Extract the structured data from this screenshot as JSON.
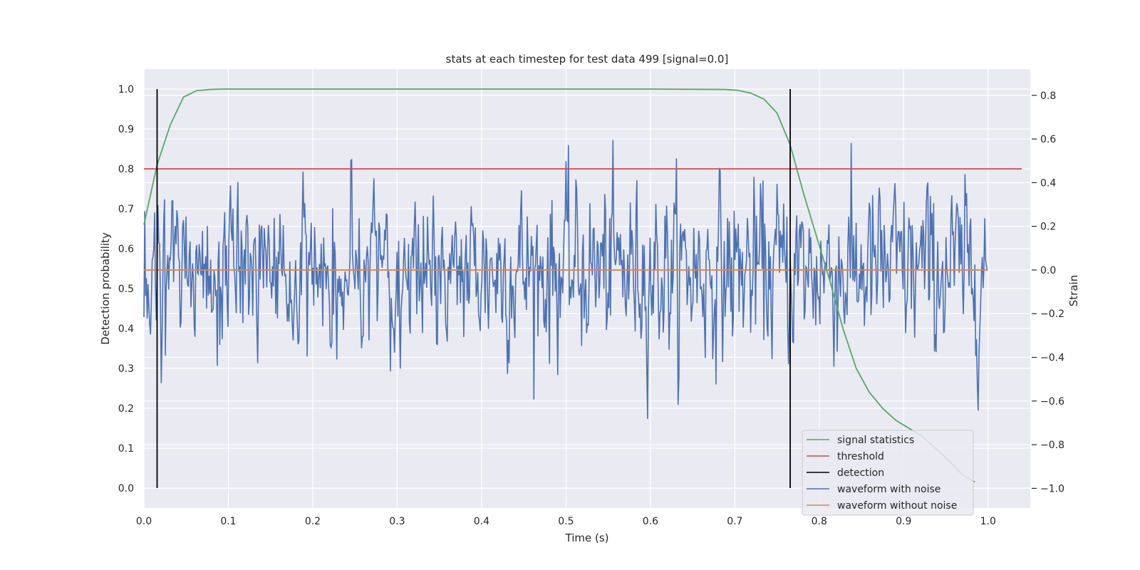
{
  "chart_data": {
    "type": "line",
    "title": "stats at each timestep for test data 499 [signal=0.0]",
    "xlabel": "Time (s)",
    "ylabel_left": "Detection probability",
    "ylabel_right": "Strain",
    "xlim": [
      0.0,
      1.05
    ],
    "ylim_left": [
      -0.05,
      1.05
    ],
    "ylim_right": [
      -1.09,
      0.92
    ],
    "x_ticks": [
      0.0,
      0.1,
      0.2,
      0.3,
      0.4,
      0.5,
      0.6,
      0.7,
      0.8,
      0.9,
      1.0
    ],
    "x_tick_labels": [
      "0.0",
      "0.1",
      "0.2",
      "0.3",
      "0.4",
      "0.5",
      "0.6",
      "0.7",
      "0.8",
      "0.9",
      "1.0"
    ],
    "y_left_ticks": [
      0.0,
      0.1,
      0.2,
      0.3,
      0.4,
      0.5,
      0.6,
      0.7,
      0.8,
      0.9,
      1.0
    ],
    "y_left_tick_labels": [
      "0.0",
      "0.1",
      "0.2",
      "0.3",
      "0.4",
      "0.5",
      "0.6",
      "0.7",
      "0.8",
      "0.9",
      "1.0"
    ],
    "y_right_ticks": [
      0.8,
      0.6,
      0.4,
      0.2,
      0.0,
      -0.2,
      -0.4,
      -0.6,
      -0.8,
      -1.0
    ],
    "y_right_tick_labels": [
      "0.8",
      "0.6",
      "0.4",
      "0.2",
      "0.0",
      "−0.2",
      "−0.4",
      "−0.6",
      "−0.8",
      "−1.0"
    ],
    "grid": true,
    "legend_position": "bottom-right",
    "series": [
      {
        "name": "signal statistics",
        "axis": "left",
        "color": "#55a868",
        "x": [
          0.0,
          0.0156,
          0.0312,
          0.0469,
          0.0625,
          0.0781,
          0.0938,
          0.1094,
          0.2,
          0.3,
          0.4,
          0.5,
          0.6,
          0.6875,
          0.7031,
          0.7188,
          0.7344,
          0.75,
          0.7656,
          0.7812,
          0.7969,
          0.8125,
          0.8281,
          0.8438,
          0.8594,
          0.875,
          0.8906,
          0.9062,
          0.9219,
          0.9375,
          0.9531,
          0.9688,
          0.9844
        ],
        "y": [
          0.66,
          0.81,
          0.91,
          0.98,
          0.996,
          0.999,
          1.0,
          1.0,
          1.0,
          1.0,
          1.0,
          1.0,
          1.0,
          0.999,
          0.997,
          0.99,
          0.975,
          0.94,
          0.86,
          0.74,
          0.63,
          0.52,
          0.4,
          0.3,
          0.24,
          0.2,
          0.17,
          0.15,
          0.13,
          0.1,
          0.07,
          0.035,
          0.015
        ]
      },
      {
        "name": "threshold",
        "axis": "left",
        "color": "#c44e52",
        "x": [
          0.0,
          1.04
        ],
        "y": [
          0.8,
          0.8
        ]
      },
      {
        "name": "detection",
        "axis": "left",
        "color": "#000000",
        "segments": [
          {
            "x": 0.0156,
            "y0": 0.0,
            "y1": 1.0
          },
          {
            "x": 0.7656,
            "y0": 0.0,
            "y1": 1.0
          }
        ]
      },
      {
        "name": "waveform with noise",
        "axis": "right",
        "color": "#4c72b0",
        "generated": {
          "n": 1024,
          "x_start": 0.0,
          "x_end": 0.999,
          "amplitude": 0.62,
          "seed": 499
        }
      },
      {
        "name": "waveform without noise",
        "axis": "right",
        "color": "#dd8452",
        "x": [
          0.0,
          0.999
        ],
        "y": [
          0.0,
          0.0
        ]
      }
    ]
  }
}
